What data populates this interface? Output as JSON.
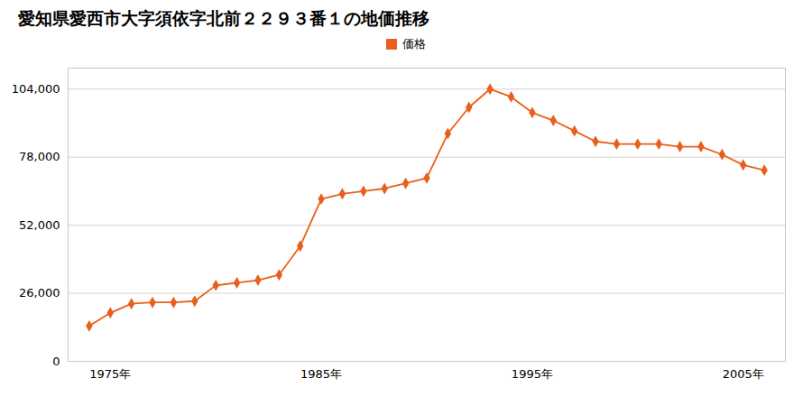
{
  "chart_data": {
    "type": "line",
    "title": "愛知県愛西市大字須依字北前２２９３番１の地価推移",
    "x": [
      1974,
      1975,
      1976,
      1977,
      1978,
      1979,
      1980,
      1981,
      1982,
      1983,
      1984,
      1985,
      1986,
      1987,
      1988,
      1989,
      1990,
      1991,
      1992,
      1993,
      1994,
      1995,
      1996,
      1997,
      1998,
      1999,
      2000,
      2001,
      2002,
      2003,
      2004,
      2005,
      2006
    ],
    "series": [
      {
        "name": "価格",
        "color": "#e8601c",
        "marker": "diamond",
        "values": [
          13500,
          18500,
          22000,
          22500,
          22500,
          23000,
          29000,
          30000,
          31000,
          33000,
          44000,
          62000,
          64000,
          65000,
          66000,
          68000,
          70000,
          87000,
          97000,
          104000,
          101000,
          95000,
          92000,
          88000,
          84000,
          83000,
          83000,
          83000,
          82000,
          82000,
          79000,
          75000,
          73000
        ]
      }
    ],
    "xlim": [
      1973,
      2007
    ],
    "xticks": [
      {
        "value": 1975,
        "label": "1975年"
      },
      {
        "value": 1985,
        "label": "1985年"
      },
      {
        "value": 1995,
        "label": "1995年"
      },
      {
        "value": 2005,
        "label": "2005年"
      }
    ],
    "ylim": [
      0,
      112000
    ],
    "yticks": [
      0,
      {
        "value": 26000,
        "label": "26,000"
      },
      {
        "value": 52000,
        "label": "52,000"
      },
      {
        "value": 78000,
        "label": "78,000"
      },
      {
        "value": 104000,
        "label": "104,000"
      }
    ],
    "grid": "y",
    "legend": "top"
  }
}
